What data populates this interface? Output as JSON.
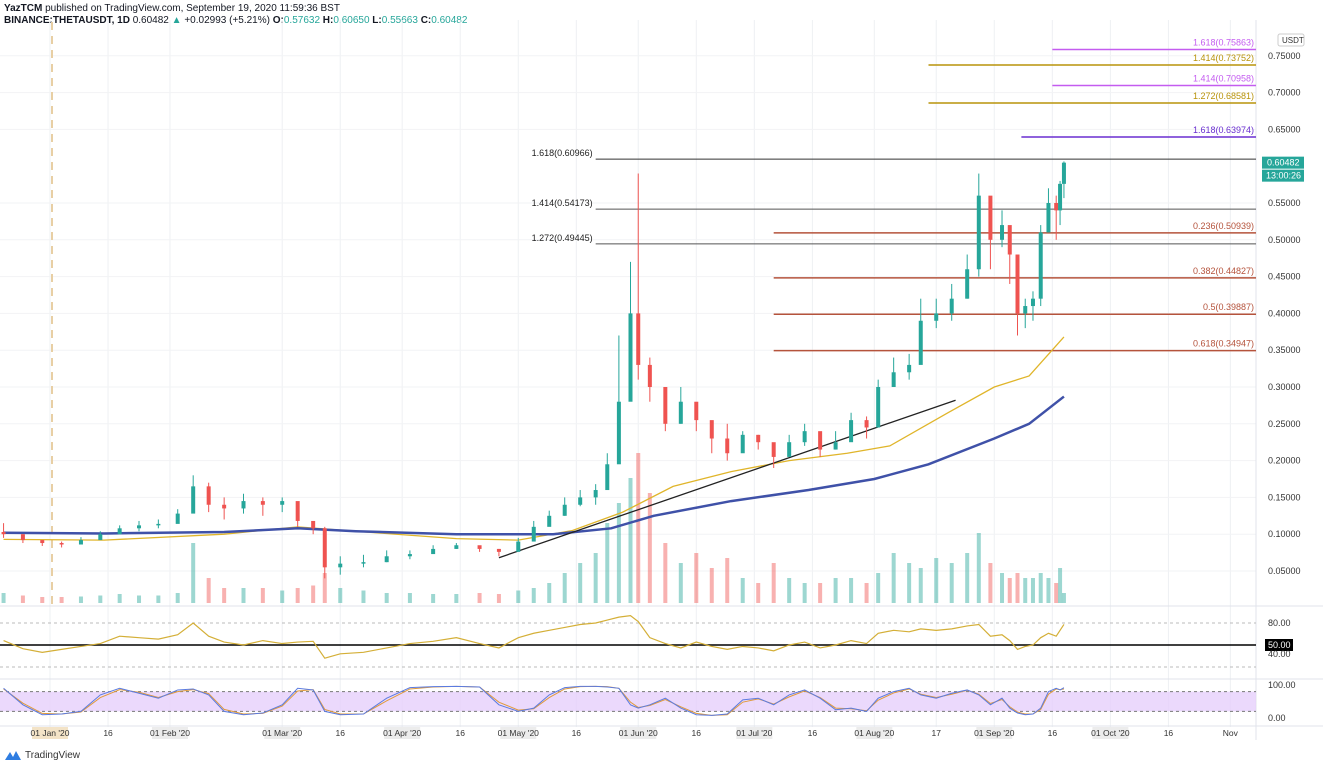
{
  "header": {
    "author": "YazTCM",
    "published": "published on TradingView.com, September 19, 2020 11:59:36 BST",
    "symbol": "BINANCE:THETAUSDT, 1D",
    "last": "0.60482",
    "change": "+0.02993 (+5.21%)",
    "o_label": "O:",
    "o": "0.57632",
    "h_label": "H:",
    "h": "0.60650",
    "l_label": "L:",
    "l": "0.55663",
    "c_label": "C:",
    "c": "0.60482"
  },
  "footer": {
    "logo_text": "TradingView"
  },
  "colors": {
    "up": "#26a69a",
    "down": "#ef5350",
    "ma_short": "#e0b52a",
    "ma_long": "#3f51a8",
    "rsi": "#d4af37",
    "stoch_k": "#5b7be0",
    "stoch_d": "#e09a3c",
    "stoch_band": "#e6d0fb",
    "price_tag": "#26a69a"
  },
  "chart_data": [
    {
      "type": "candlestick",
      "title": "",
      "currency_label": "USDT",
      "ylim": [
        0.0,
        0.78
      ],
      "yticks": [
        "0.75000",
        "0.70000",
        "0.65000",
        "0.55000",
        "0.50000",
        "0.45000",
        "0.40000",
        "0.35000",
        "0.30000",
        "0.25000",
        "0.20000",
        "0.15000",
        "0.10000",
        "0.05000"
      ],
      "last_price_tag": "0.60482",
      "countdown_tag": "13:00:26",
      "xticks": [
        {
          "date": "2020-01-01",
          "label": "01 Jan '20",
          "highlight": true
        },
        {
          "date": "2020-01-16",
          "label": "16"
        },
        {
          "date": "2020-02-01",
          "label": "01 Feb '20"
        },
        {
          "date": "2020-03-01",
          "label": "01 Mar '20"
        },
        {
          "date": "2020-03-16",
          "label": "16"
        },
        {
          "date": "2020-04-01",
          "label": "01 Apr '20"
        },
        {
          "date": "2020-04-16",
          "label": "16"
        },
        {
          "date": "2020-05-01",
          "label": "01 May '20"
        },
        {
          "date": "2020-05-16",
          "label": "16"
        },
        {
          "date": "2020-06-01",
          "label": "01 Jun '20"
        },
        {
          "date": "2020-06-16",
          "label": "16"
        },
        {
          "date": "2020-07-01",
          "label": "01 Jul '20"
        },
        {
          "date": "2020-07-16",
          "label": "16"
        },
        {
          "date": "2020-08-01",
          "label": "01 Aug '20"
        },
        {
          "date": "2020-08-17",
          "label": "17"
        },
        {
          "date": "2020-09-01",
          "label": "01 Sep '20"
        },
        {
          "date": "2020-09-16",
          "label": "16"
        },
        {
          "date": "2020-10-01",
          "label": "01 Oct '20"
        },
        {
          "date": "2020-10-16",
          "label": "16"
        },
        {
          "date": "2020-11-01",
          "label": "Nov"
        }
      ],
      "candles_date_close_high_low": [
        [
          "2019-12-20",
          0.1,
          0.115,
          0.095
        ],
        [
          "2019-12-25",
          0.092,
          0.1,
          0.088
        ],
        [
          "2019-12-30",
          0.088,
          0.092,
          0.084
        ],
        [
          "2020-01-04",
          0.086,
          0.09,
          0.082
        ],
        [
          "2020-01-09",
          0.092,
          0.096,
          0.086
        ],
        [
          "2020-01-14",
          0.1,
          0.104,
          0.094
        ],
        [
          "2020-01-19",
          0.108,
          0.112,
          0.1
        ],
        [
          "2020-01-24",
          0.112,
          0.118,
          0.104
        ],
        [
          "2020-01-29",
          0.114,
          0.12,
          0.108
        ],
        [
          "2020-02-03",
          0.128,
          0.134,
          0.115
        ],
        [
          "2020-02-07",
          0.165,
          0.18,
          0.13
        ],
        [
          "2020-02-11",
          0.14,
          0.17,
          0.13
        ],
        [
          "2020-02-15",
          0.135,
          0.15,
          0.12
        ],
        [
          "2020-02-20",
          0.145,
          0.155,
          0.128
        ],
        [
          "2020-02-25",
          0.14,
          0.15,
          0.125
        ],
        [
          "2020-03-01",
          0.145,
          0.15,
          0.13
        ],
        [
          "2020-03-05",
          0.118,
          0.125,
          0.11
        ],
        [
          "2020-03-09",
          0.108,
          0.115,
          0.1
        ],
        [
          "2020-03-12",
          0.055,
          0.11,
          0.04
        ],
        [
          "2020-03-16",
          0.06,
          0.07,
          0.045
        ],
        [
          "2020-03-22",
          0.062,
          0.072,
          0.055
        ],
        [
          "2020-03-28",
          0.07,
          0.078,
          0.062
        ],
        [
          "2020-04-03",
          0.073,
          0.078,
          0.066
        ],
        [
          "2020-04-09",
          0.08,
          0.085,
          0.074
        ],
        [
          "2020-04-15",
          0.085,
          0.088,
          0.08
        ],
        [
          "2020-04-21",
          0.08,
          0.084,
          0.076
        ],
        [
          "2020-04-26",
          0.076,
          0.08,
          0.07
        ],
        [
          "2020-05-01",
          0.09,
          0.095,
          0.084
        ],
        [
          "2020-05-05",
          0.11,
          0.118,
          0.092
        ],
        [
          "2020-05-09",
          0.125,
          0.132,
          0.112
        ],
        [
          "2020-05-13",
          0.14,
          0.15,
          0.125
        ],
        [
          "2020-05-17",
          0.15,
          0.16,
          0.138
        ],
        [
          "2020-05-21",
          0.16,
          0.168,
          0.14
        ],
        [
          "2020-05-24",
          0.195,
          0.21,
          0.165
        ],
        [
          "2020-05-27",
          0.28,
          0.37,
          0.23
        ],
        [
          "2020-05-30",
          0.4,
          0.47,
          0.33
        ],
        [
          "2020-06-01",
          0.33,
          0.59,
          0.31
        ],
        [
          "2020-06-04",
          0.3,
          0.34,
          0.28
        ],
        [
          "2020-06-08",
          0.25,
          0.29,
          0.24
        ],
        [
          "2020-06-12",
          0.28,
          0.3,
          0.25
        ],
        [
          "2020-06-16",
          0.255,
          0.27,
          0.24
        ],
        [
          "2020-06-20",
          0.23,
          0.24,
          0.21
        ],
        [
          "2020-06-24",
          0.21,
          0.25,
          0.2
        ],
        [
          "2020-06-28",
          0.235,
          0.24,
          0.22
        ],
        [
          "2020-07-02",
          0.225,
          0.235,
          0.215
        ],
        [
          "2020-07-06",
          0.205,
          0.215,
          0.19
        ],
        [
          "2020-07-10",
          0.225,
          0.235,
          0.21
        ],
        [
          "2020-07-14",
          0.24,
          0.25,
          0.22
        ],
        [
          "2020-07-18",
          0.215,
          0.23,
          0.205
        ],
        [
          "2020-07-22",
          0.225,
          0.24,
          0.215
        ],
        [
          "2020-07-26",
          0.255,
          0.265,
          0.24
        ],
        [
          "2020-07-30",
          0.245,
          0.26,
          0.23
        ],
        [
          "2020-08-02",
          0.3,
          0.31,
          0.25
        ],
        [
          "2020-08-06",
          0.32,
          0.34,
          0.3
        ],
        [
          "2020-08-10",
          0.33,
          0.345,
          0.31
        ],
        [
          "2020-08-13",
          0.39,
          0.42,
          0.34
        ],
        [
          "2020-08-17",
          0.4,
          0.42,
          0.38
        ],
        [
          "2020-08-21",
          0.42,
          0.44,
          0.39
        ],
        [
          "2020-08-25",
          0.46,
          0.48,
          0.42
        ],
        [
          "2020-08-28",
          0.56,
          0.59,
          0.45
        ],
        [
          "2020-08-31",
          0.5,
          0.55,
          0.46
        ],
        [
          "2020-09-03",
          0.52,
          0.54,
          0.49
        ],
        [
          "2020-09-05",
          0.48,
          0.51,
          0.44
        ],
        [
          "2020-09-07",
          0.4,
          0.47,
          0.37
        ],
        [
          "2020-09-09",
          0.41,
          0.42,
          0.38
        ],
        [
          "2020-09-11",
          0.42,
          0.43,
          0.39
        ],
        [
          "2020-09-13",
          0.51,
          0.52,
          0.41
        ],
        [
          "2020-09-15",
          0.55,
          0.57,
          0.53
        ],
        [
          "2020-09-17",
          0.54,
          0.56,
          0.5
        ],
        [
          "2020-09-18",
          0.576,
          0.58,
          0.52
        ],
        [
          "2020-09-19",
          0.60482,
          0.6065,
          0.55663
        ]
      ],
      "volume_relative": [
        2,
        1.5,
        1.2,
        1.2,
        1.3,
        1.5,
        1.8,
        1.5,
        1.5,
        2,
        12,
        5,
        3,
        3,
        3,
        2.5,
        3,
        3.5,
        6,
        3,
        2.5,
        2,
        2,
        1.8,
        1.8,
        2,
        1.8,
        2.5,
        3,
        4,
        6,
        8,
        10,
        16,
        20,
        25,
        30,
        22,
        12,
        8,
        10,
        7,
        9,
        5,
        4,
        8,
        5,
        4,
        4,
        5,
        5,
        4,
        6,
        10,
        8,
        7,
        9,
        8,
        10,
        14,
        8,
        6,
        5,
        6,
        5,
        5,
        6,
        5,
        4,
        7,
        2
      ],
      "moving_averages": [
        {
          "color": "ma_short",
          "points": [
            [
              "2019-12-20",
              0.093
            ],
            [
              "2020-01-15",
              0.092
            ],
            [
              "2020-02-15",
              0.1
            ],
            [
              "2020-03-05",
              0.11
            ],
            [
              "2020-03-20",
              0.104
            ],
            [
              "2020-04-15",
              0.094
            ],
            [
              "2020-05-01",
              0.092
            ],
            [
              "2020-05-15",
              0.105
            ],
            [
              "2020-05-28",
              0.13
            ],
            [
              "2020-06-10",
              0.165
            ],
            [
              "2020-06-25",
              0.185
            ],
            [
              "2020-07-10",
              0.2
            ],
            [
              "2020-07-25",
              0.21
            ],
            [
              "2020-08-05",
              0.22
            ],
            [
              "2020-08-20",
              0.265
            ],
            [
              "2020-09-01",
              0.3
            ],
            [
              "2020-09-10",
              0.315
            ],
            [
              "2020-09-19",
              0.368
            ]
          ]
        },
        {
          "color": "ma_long",
          "points": [
            [
              "2019-12-20",
              0.102
            ],
            [
              "2020-01-15",
              0.101
            ],
            [
              "2020-02-15",
              0.103
            ],
            [
              "2020-03-05",
              0.108
            ],
            [
              "2020-03-20",
              0.104
            ],
            [
              "2020-04-15",
              0.1
            ],
            [
              "2020-05-10",
              0.1
            ],
            [
              "2020-05-25",
              0.108
            ],
            [
              "2020-06-05",
              0.125
            ],
            [
              "2020-06-25",
              0.145
            ],
            [
              "2020-07-15",
              0.16
            ],
            [
              "2020-08-01",
              0.175
            ],
            [
              "2020-08-15",
              0.195
            ],
            [
              "2020-09-01",
              0.23
            ],
            [
              "2020-09-10",
              0.25
            ],
            [
              "2020-09-19",
              0.287
            ]
          ]
        }
      ],
      "trendlines": [
        {
          "color": "#222222",
          "from": [
            "2020-04-26",
            0.068
          ],
          "to": [
            "2020-08-22",
            0.282
          ]
        }
      ],
      "fib_levels": [
        {
          "label": "1.618(0.75863)",
          "value": 0.75863,
          "from": "2020-09-16",
          "color": "#c45cf0"
        },
        {
          "label": "1.414(0.73752)",
          "value": 0.73752,
          "from": "2020-08-15",
          "color": "#b8930a"
        },
        {
          "label": "1.414(0.70958)",
          "value": 0.70958,
          "from": "2020-09-16",
          "color": "#c45cf0"
        },
        {
          "label": "1.272(0.68581)",
          "value": 0.68581,
          "from": "2020-08-15",
          "color": "#b8930a"
        },
        {
          "label": "1.618(0.63974)",
          "value": 0.63974,
          "from": "2020-09-08",
          "color": "#6a2fd0"
        },
        {
          "label": "1.618(0.60966)",
          "value": 0.60966,
          "from": "2020-05-21",
          "color": "#333333",
          "label_left": true
        },
        {
          "label": "1.414(0.54173)",
          "value": 0.54173,
          "from": "2020-05-21",
          "color": "#555555",
          "label_left": true
        },
        {
          "label": "1.272(0.49445)",
          "value": 0.49445,
          "from": "2020-05-21",
          "color": "#555555",
          "label_left": true
        },
        {
          "label": "0.236(0.50939)",
          "value": 0.50939,
          "from": "2020-07-06",
          "color": "#b5533c"
        },
        {
          "label": "0.382(0.44827)",
          "value": 0.44827,
          "from": "2020-07-06",
          "color": "#b5533c"
        },
        {
          "label": "0.5(0.39887)",
          "value": 0.39887,
          "from": "2020-07-06",
          "color": "#b5533c"
        },
        {
          "label": "0.618(0.34947)",
          "value": 0.34947,
          "from": "2020-07-06",
          "color": "#b5533c"
        }
      ]
    },
    {
      "type": "line",
      "indicator": "rsi",
      "yticks": [
        "80.00",
        "50.00",
        "40.00"
      ],
      "levels": [
        80,
        50,
        20
      ],
      "values": [
        56,
        45,
        40,
        44,
        48,
        52,
        62,
        60,
        58,
        64,
        80,
        62,
        54,
        50,
        56,
        52,
        54,
        55,
        32,
        38,
        40,
        46,
        52,
        55,
        60,
        52,
        46,
        60,
        66,
        70,
        74,
        78,
        80,
        84,
        88,
        90,
        82,
        60,
        52,
        46,
        54,
        48,
        44,
        48,
        46,
        42,
        50,
        54,
        46,
        50,
        56,
        52,
        66,
        70,
        68,
        72,
        70,
        72,
        76,
        78,
        62,
        64,
        56,
        44,
        48,
        50,
        60,
        66,
        62,
        70,
        78
      ]
    },
    {
      "type": "line",
      "indicator": "stochastic",
      "yticks": [
        "100.00",
        "0.00"
      ],
      "band": [
        20,
        80
      ],
      "k": [
        90,
        40,
        10,
        12,
        20,
        70,
        90,
        75,
        60,
        85,
        88,
        70,
        20,
        10,
        15,
        40,
        90,
        85,
        20,
        10,
        12,
        60,
        92,
        95,
        96,
        94,
        40,
        20,
        30,
        70,
        92,
        96,
        96,
        94,
        90,
        40,
        30,
        40,
        60,
        30,
        10,
        8,
        12,
        55,
        60,
        40,
        70,
        85,
        60,
        25,
        30,
        20,
        60,
        80,
        90,
        70,
        60,
        75,
        85,
        70,
        40,
        60,
        30,
        15,
        10,
        12,
        30,
        80,
        90,
        85,
        92
      ],
      "d": [
        88,
        45,
        14,
        12,
        18,
        62,
        86,
        78,
        62,
        80,
        86,
        74,
        26,
        12,
        14,
        36,
        82,
        86,
        26,
        12,
        12,
        52,
        88,
        94,
        96,
        94,
        48,
        24,
        28,
        62,
        88,
        95,
        96,
        95,
        90,
        48,
        32,
        38,
        56,
        34,
        14,
        8,
        10,
        48,
        58,
        42,
        64,
        82,
        62,
        30,
        28,
        22,
        54,
        76,
        88,
        72,
        62,
        72,
        84,
        72,
        44,
        56,
        34,
        18,
        12,
        12,
        26,
        72,
        88,
        86,
        88
      ]
    }
  ]
}
